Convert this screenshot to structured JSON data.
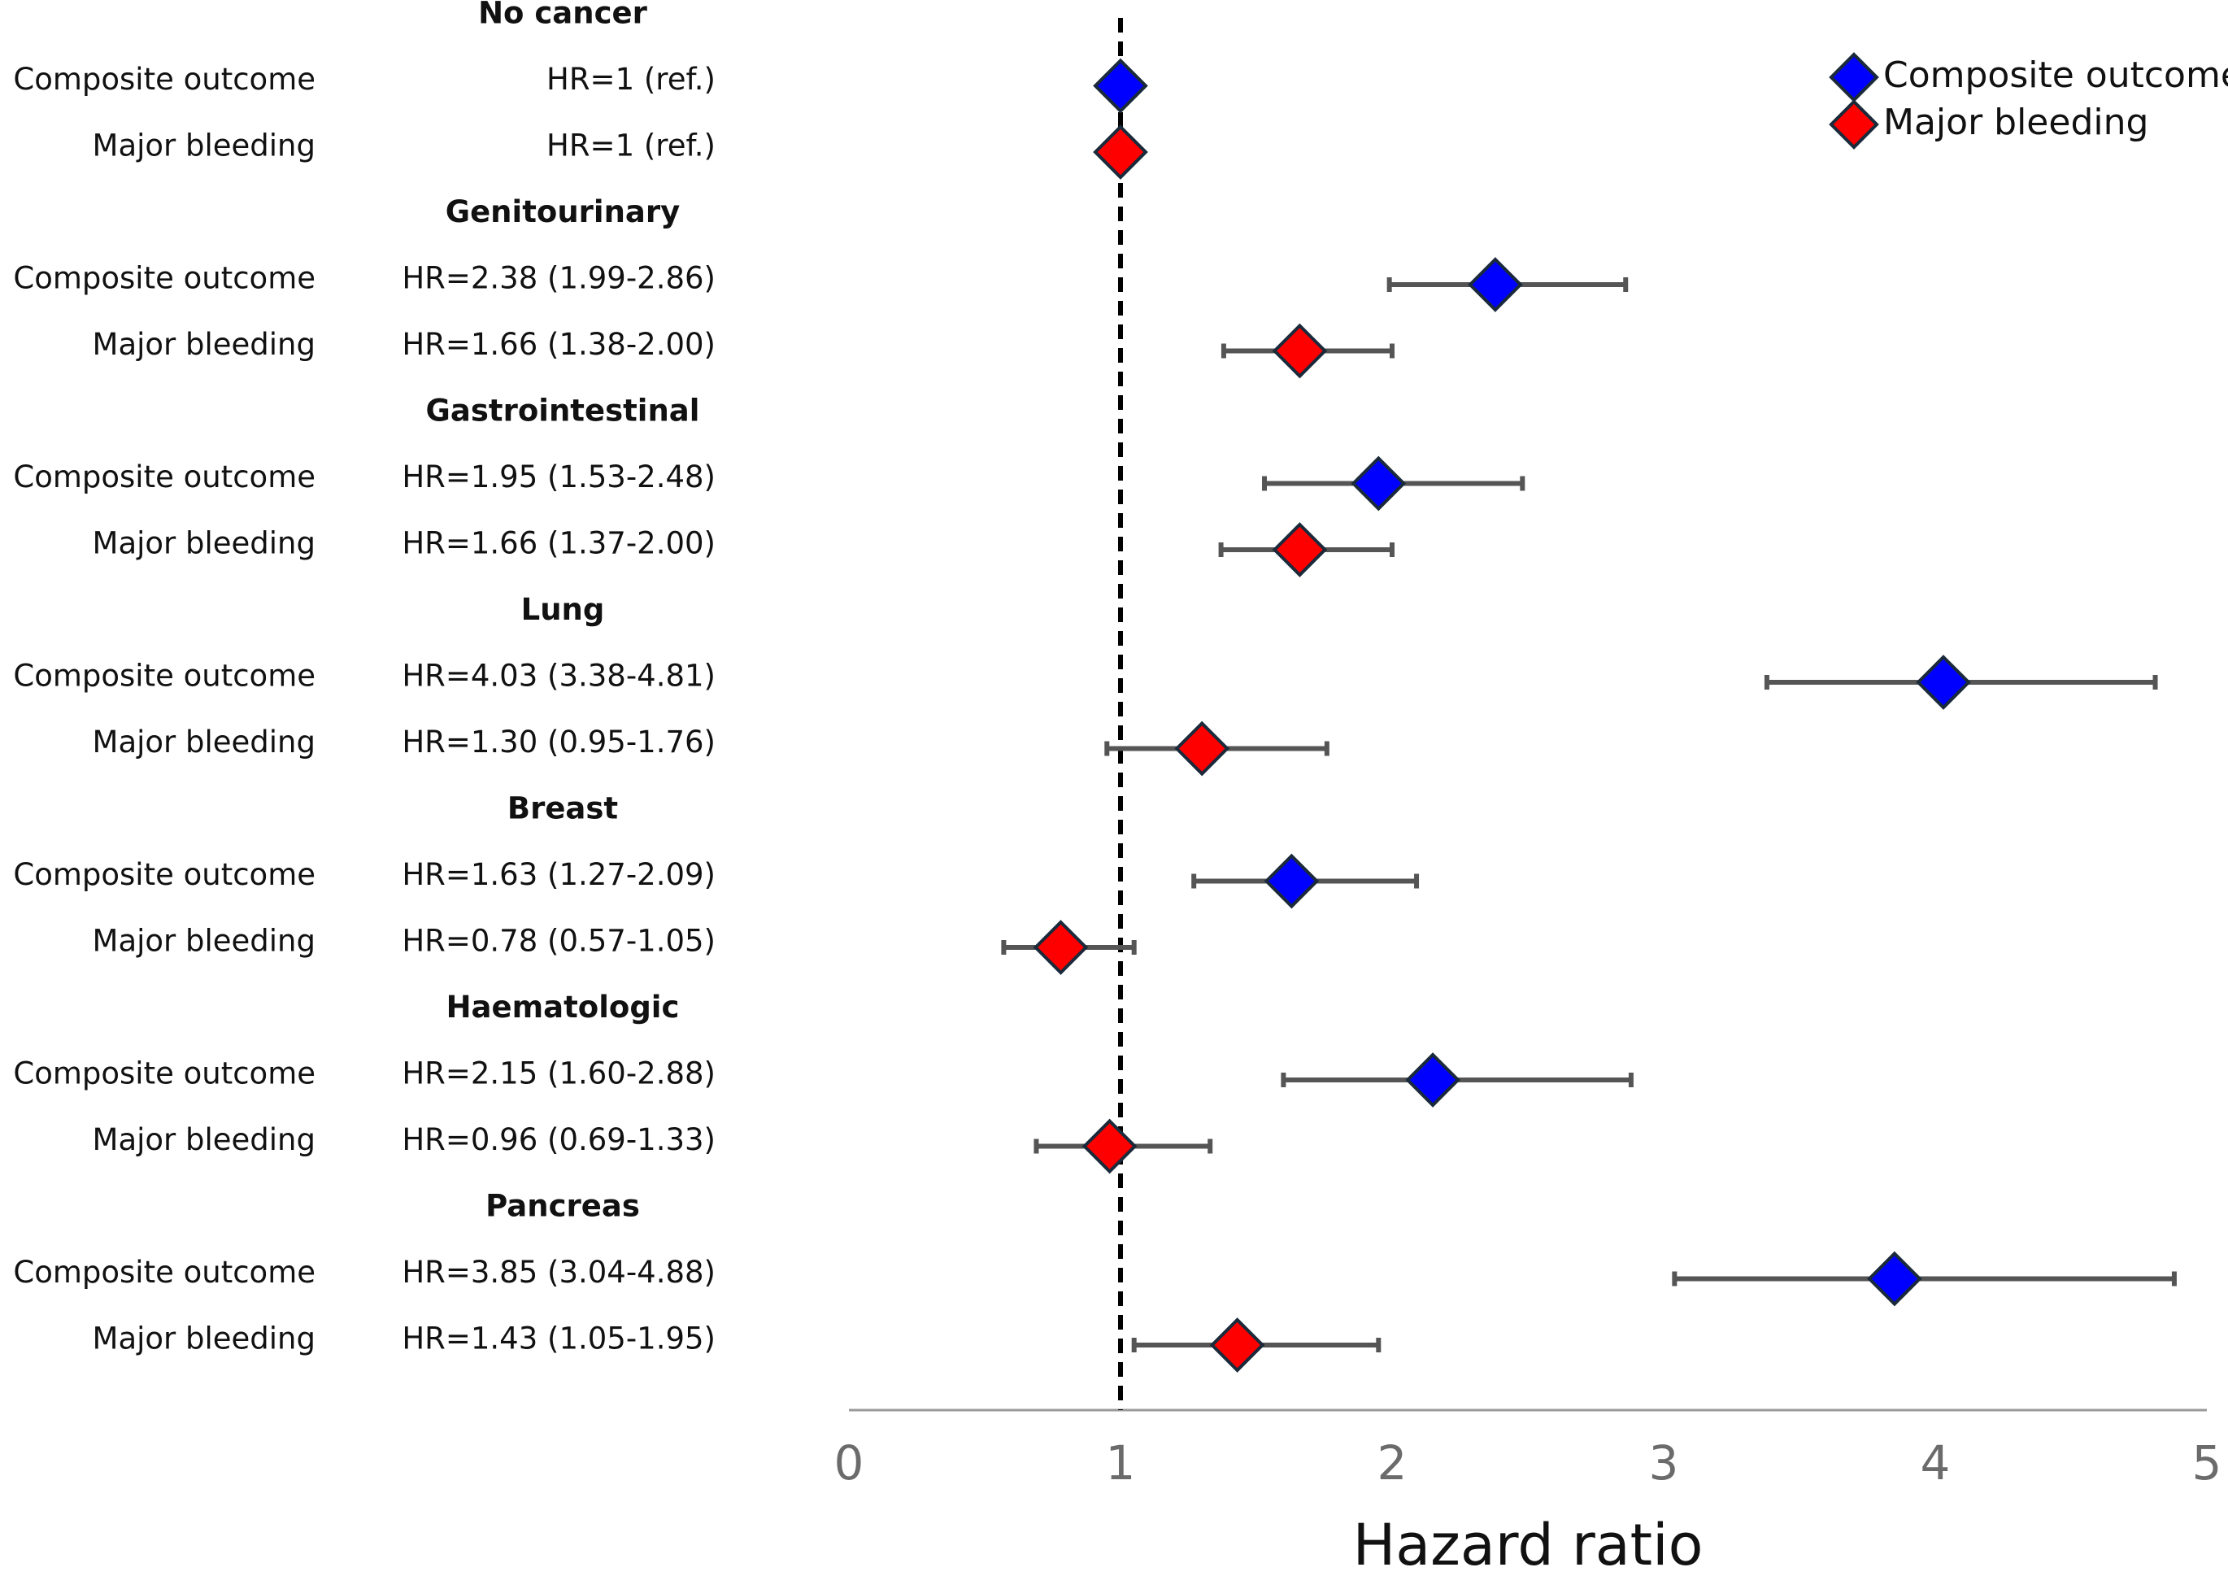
{
  "chart_data": {
    "type": "forest",
    "xlabel": "Hazard ratio",
    "xlim": [
      0,
      5
    ],
    "xticks": [
      "0",
      "1",
      "2",
      "3",
      "4",
      "5"
    ],
    "reference_line": 1,
    "legend": {
      "position": "top-right",
      "entries": [
        {
          "name": "Composite outcome",
          "color": "#0000ff"
        },
        {
          "name": "Major bleeding",
          "color": "#ff0000"
        }
      ]
    },
    "groups": [
      {
        "name": "No cancer",
        "rows": [
          {
            "label": "Composite outcome",
            "text": "HR=1 (ref.)",
            "hr": 1,
            "lo": null,
            "hi": null,
            "color": "#0000ff"
          },
          {
            "label": "Major bleeding",
            "text": "HR=1 (ref.)",
            "hr": 1,
            "lo": null,
            "hi": null,
            "color": "#ff0000"
          }
        ]
      },
      {
        "name": "Genitourinary",
        "rows": [
          {
            "label": "Composite outcome",
            "text": "HR=2.38 (1.99-2.86)",
            "hr": 2.38,
            "lo": 1.99,
            "hi": 2.86,
            "color": "#0000ff"
          },
          {
            "label": "Major bleeding",
            "text": "HR=1.66 (1.38-2.00)",
            "hr": 1.66,
            "lo": 1.38,
            "hi": 2.0,
            "color": "#ff0000"
          }
        ]
      },
      {
        "name": "Gastrointestinal",
        "rows": [
          {
            "label": "Composite outcome",
            "text": "HR=1.95 (1.53-2.48)",
            "hr": 1.95,
            "lo": 1.53,
            "hi": 2.48,
            "color": "#0000ff"
          },
          {
            "label": "Major bleeding",
            "text": "HR=1.66 (1.37-2.00)",
            "hr": 1.66,
            "lo": 1.37,
            "hi": 2.0,
            "color": "#ff0000"
          }
        ]
      },
      {
        "name": "Lung",
        "rows": [
          {
            "label": "Composite outcome",
            "text": "HR=4.03 (3.38-4.81)",
            "hr": 4.03,
            "lo": 3.38,
            "hi": 4.81,
            "color": "#0000ff"
          },
          {
            "label": "Major bleeding",
            "text": "HR=1.30 (0.95-1.76)",
            "hr": 1.3,
            "lo": 0.95,
            "hi": 1.76,
            "color": "#ff0000"
          }
        ]
      },
      {
        "name": "Breast",
        "rows": [
          {
            "label": "Composite outcome",
            "text": "HR=1.63 (1.27-2.09)",
            "hr": 1.63,
            "lo": 1.27,
            "hi": 2.09,
            "color": "#0000ff"
          },
          {
            "label": "Major bleeding",
            "text": "HR=0.78 (0.57-1.05)",
            "hr": 0.78,
            "lo": 0.57,
            "hi": 1.05,
            "color": "#ff0000"
          }
        ]
      },
      {
        "name": "Haematologic",
        "rows": [
          {
            "label": "Composite outcome",
            "text": "HR=2.15 (1.60-2.88)",
            "hr": 2.15,
            "lo": 1.6,
            "hi": 2.88,
            "color": "#0000ff"
          },
          {
            "label": "Major bleeding",
            "text": "HR=0.96 (0.69-1.33)",
            "hr": 0.96,
            "lo": 0.69,
            "hi": 1.33,
            "color": "#ff0000"
          }
        ]
      },
      {
        "name": "Pancreas",
        "rows": [
          {
            "label": "Composite outcome",
            "text": "HR=3.85 (3.04-4.88)",
            "hr": 3.85,
            "lo": 3.04,
            "hi": 4.88,
            "color": "#0000ff"
          },
          {
            "label": "Major bleeding",
            "text": "HR=1.43 (1.05-1.95)",
            "hr": 1.43,
            "lo": 1.05,
            "hi": 1.95,
            "color": "#ff0000"
          }
        ]
      }
    ]
  }
}
